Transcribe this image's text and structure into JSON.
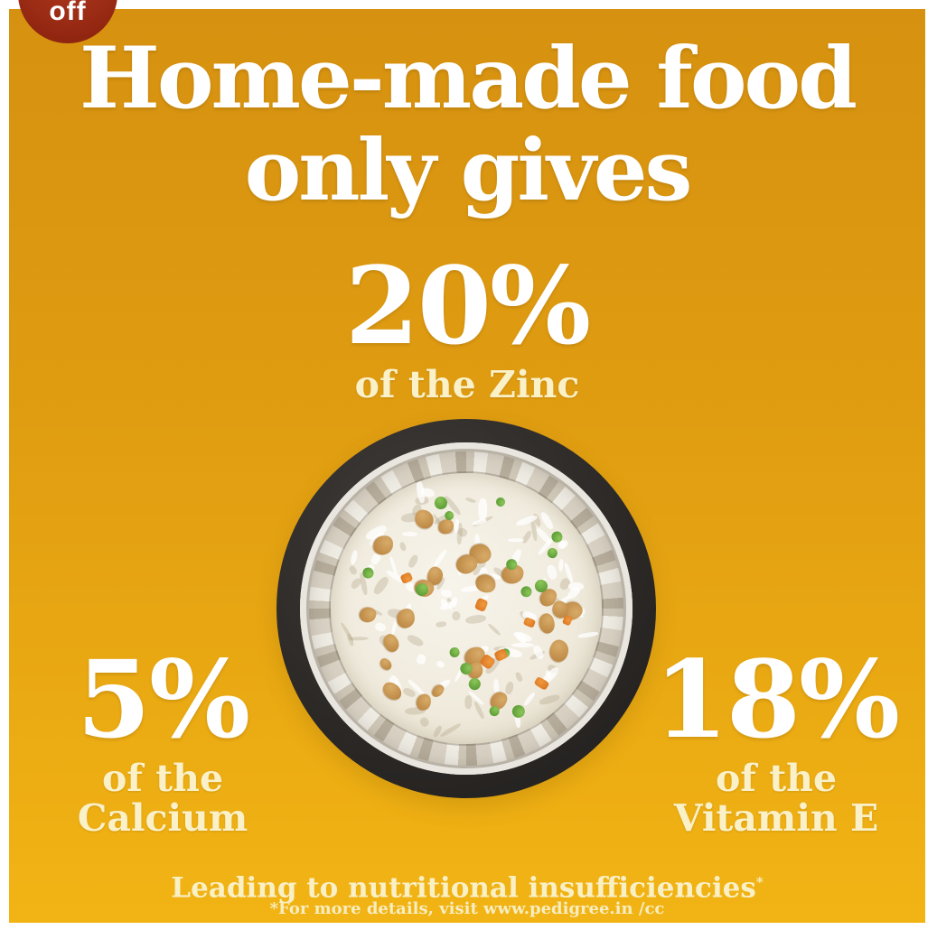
{
  "badge": {
    "label": "off"
  },
  "poster": {
    "title_line1": "Home-made food",
    "title_line2": "only gives",
    "stats": [
      {
        "id": "zinc",
        "value": "20%",
        "label": "of the Zinc"
      },
      {
        "id": "calcium",
        "value": "5%",
        "label": "of the Calcium"
      },
      {
        "id": "vitamin_e",
        "value": "18%",
        "label": "of the Vitamin E"
      }
    ],
    "footer": {
      "line1": "Leading to nutritional insufficiencies",
      "line1_sup": "*",
      "line2": "*For more details, visit www.pedigree.in /cc"
    }
  },
  "bowl": {
    "description": "top view of a stainless-steel dog bowl with dark rim, filled with white rice, chicken bits, green peas and carrot pieces"
  },
  "colors": {
    "page_margin": "#ffffff",
    "poster_gradient_top": "#d69110",
    "poster_gradient_bottom": "#f2b414",
    "badge_red": "#9c2c15",
    "headline_white": "#ffffff",
    "stat_value_white": "#ffffff",
    "stat_label_cream": "#faf1c9",
    "footer_cream": "#f8efc4",
    "bowl_rim_dark": "#2b2826",
    "bowl_steel": "#cfc7b7",
    "rice": "#f1ecdf",
    "pea_green": "#5f9e33",
    "carrot_orange": "#e2832c",
    "chicken_brown": "#c2914e"
  }
}
